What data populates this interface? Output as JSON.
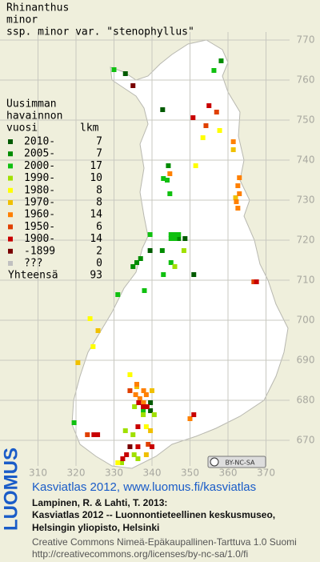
{
  "title": [
    "Rhinanthus",
    "minor",
    "ssp. minor var. \"stenophyllus\""
  ],
  "map": {
    "xlim": [
      300,
      380
    ],
    "ylim": [
      640,
      780
    ],
    "xticks": [
      310,
      320,
      330,
      340,
      350,
      360,
      370
    ],
    "yticks": [
      670,
      680,
      690,
      700,
      710,
      720,
      730,
      740,
      750,
      760,
      770
    ]
  },
  "legend": {
    "header": [
      "Uusimman",
      "havainnon",
      "vuosi",
      "lkm"
    ],
    "entries": [
      {
        "label": "2010-",
        "count": 7,
        "color": "#005a00",
        "squares": [
          [
            333,
            761.6
          ],
          [
            342.8,
            752.6
          ],
          [
            339.5,
            717.4
          ],
          [
            351,
            711.4
          ],
          [
            339.6,
            679.4
          ],
          [
            339.6,
            677.4
          ],
          [
            348.7,
            720.4
          ]
        ]
      },
      {
        "label": "2005-",
        "count": 7,
        "color": "#008c00",
        "squares": [
          [
            358.2,
            764.8
          ],
          [
            344.3,
            738.6
          ],
          [
            342.7,
            717.4
          ],
          [
            347,
            720.4
          ],
          [
            337,
            715.4
          ],
          [
            336,
            714.4
          ],
          [
            335,
            713.4
          ]
        ]
      },
      {
        "label": "2000-",
        "count": 17,
        "color": "#10c010",
        "squares": [
          [
            356.3,
            762.4
          ],
          [
            330,
            762.6
          ],
          [
            343,
            735.4
          ],
          [
            344,
            735
          ],
          [
            344.7,
            731.6
          ],
          [
            339.5,
            721.4
          ],
          [
            345,
            721.4
          ],
          [
            346,
            721.4
          ],
          [
            347,
            721.4
          ],
          [
            345,
            720.4
          ],
          [
            346,
            720.4
          ],
          [
            345,
            714.4
          ],
          [
            343,
            711.4
          ],
          [
            338,
            707.4
          ],
          [
            331,
            706.4
          ],
          [
            337.7,
            677.4
          ],
          [
            319.5,
            674.4
          ]
        ]
      },
      {
        "label": "1990-",
        "count": 10,
        "color": "#a0e000",
        "squares": [
          [
            335.4,
            678.4
          ],
          [
            335.3,
            666.4
          ],
          [
            336.3,
            665.4
          ],
          [
            337.7,
            676.4
          ],
          [
            346,
            713.4
          ],
          [
            348.4,
            717.4
          ],
          [
            335,
            671.4
          ],
          [
            340.6,
            676.4
          ],
          [
            332,
            664.4
          ],
          [
            333,
            672.4
          ]
        ]
      },
      {
        "label": "1980-",
        "count": 8,
        "color": "#ffff00",
        "squares": [
          [
            357.8,
            747.4
          ],
          [
            353.4,
            745.6
          ],
          [
            351.5,
            738.6
          ],
          [
            323.7,
            700.4
          ],
          [
            324.5,
            693.4
          ],
          [
            334.2,
            686.4
          ],
          [
            331,
            664.4
          ],
          [
            338.5,
            673.4
          ]
        ]
      },
      {
        "label": "1970-",
        "count": 8,
        "color": "#f0c000",
        "squares": [
          [
            361.4,
            742.6
          ],
          [
            325.8,
            697.4
          ],
          [
            320.5,
            689.4
          ],
          [
            338.5,
            666.4
          ],
          [
            339.6,
            672.4
          ],
          [
            336,
            683.4
          ],
          [
            340,
            682.4
          ],
          [
            362,
            730.6
          ]
        ]
      },
      {
        "label": "1960-",
        "count": 14,
        "color": "#ff8000",
        "squares": [
          [
            344.7,
            736.6
          ],
          [
            361.4,
            744.6
          ],
          [
            363,
            735.6
          ],
          [
            362.6,
            733.6
          ],
          [
            363,
            731.6
          ],
          [
            362.2,
            729.6
          ],
          [
            335.7,
            681.4
          ],
          [
            336.8,
            680.4
          ],
          [
            337.8,
            679.4
          ],
          [
            350,
            675.4
          ],
          [
            338.5,
            681.4
          ],
          [
            337.8,
            682.4
          ],
          [
            362.6,
            728
          ],
          [
            336,
            684
          ]
        ]
      },
      {
        "label": "1950-",
        "count": 6,
        "color": "#e04000",
        "squares": [
          [
            354.2,
            748.6
          ],
          [
            366.8,
            709.6
          ],
          [
            334.2,
            682.4
          ],
          [
            339,
            669
          ],
          [
            357,
            752
          ],
          [
            323,
            671.4
          ]
        ]
      },
      {
        "label": "1900-",
        "count": 14,
        "color": "#c80000",
        "squares": [
          [
            355,
            753.6
          ],
          [
            350.8,
            750.6
          ],
          [
            337.7,
            678.4
          ],
          [
            338.7,
            678.4
          ],
          [
            324.7,
            671.4
          ],
          [
            325.7,
            671.4
          ],
          [
            336.3,
            668.4
          ],
          [
            333.3,
            666.4
          ],
          [
            332.3,
            665.4
          ],
          [
            351,
            676.4
          ],
          [
            336.5,
            679.4
          ],
          [
            336.3,
            673.4
          ],
          [
            340,
            668.4
          ],
          [
            367.5,
            709.6
          ]
        ]
      },
      {
        "label": "-1899",
        "count": 2,
        "color": "#780000",
        "squares": [
          [
            335,
            758.6
          ],
          [
            334.2,
            668.4
          ]
        ]
      },
      {
        "label": "???",
        "count": 0,
        "color": "#c0c0c0",
        "squares": []
      }
    ],
    "total_label": "Yhteensä",
    "total": 93
  },
  "license_badge": "BY-NC-SA",
  "footer": {
    "link": "Kasviatlas 2012, www.luomus.fi/kasviatlas",
    "citation": [
      "Lampinen, R. & Lahti, T. 2013:",
      "Kasviatlas 2012 -- Luonnontieteellinen keskusmuseo,",
      "Helsingin yliopisto, Helsinki"
    ],
    "license": [
      "Creative Commons Nimeä-Epäkaupallinen-Tarttuva 1.0 Suomi",
      "http://creativecommons.org/licenses/by-nc-sa/1.0/fi"
    ],
    "logo": "LUOMUS"
  }
}
